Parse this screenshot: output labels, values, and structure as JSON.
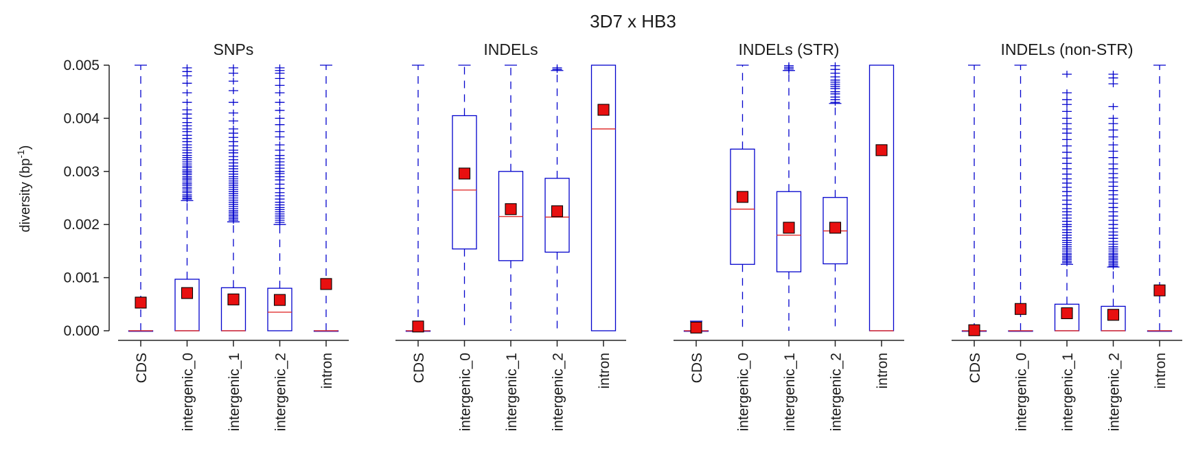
{
  "chart_data": {
    "type": "box",
    "title": "3D7 x HB3",
    "ylabel": "diversity (bp$^{-1}$)",
    "ylim": [
      0,
      0.005
    ],
    "yticks": [
      "0.000",
      "0.001",
      "0.002",
      "0.003",
      "0.004",
      "0.005"
    ],
    "categories": [
      "CDS",
      "intergenic_0",
      "intergenic_1",
      "intergenic_2",
      "intron"
    ],
    "colors": {
      "box": "#0000cc",
      "median": "#e03030",
      "mean_fill": "#e81010",
      "mean_edge": "#000000",
      "axis": "#222222"
    },
    "panels": [
      {
        "title": "SNPs",
        "boxes": [
          {
            "category": "CDS",
            "q1": 0,
            "median": 0,
            "q3": 0,
            "whisker_low": 0,
            "whisker_high": 0.005,
            "mean": 0.00053,
            "outliers": []
          },
          {
            "category": "intergenic_0",
            "q1": 0,
            "median": 0,
            "q3": 0.00097,
            "whisker_low": 0,
            "whisker_high": 0.00245,
            "mean": 0.00071,
            "outliers": [
              0.00248,
              0.0025,
              0.00253,
              0.00256,
              0.0026,
              0.00263,
              0.00267,
              0.0027,
              0.00274,
              0.00277,
              0.0028,
              0.00284,
              0.00287,
              0.0029,
              0.00294,
              0.00297,
              0.003,
              0.00303,
              0.00307,
              0.0031,
              0.00314,
              0.00318,
              0.00322,
              0.00326,
              0.0033,
              0.00335,
              0.0034,
              0.00345,
              0.0035,
              0.00356,
              0.00362,
              0.00368,
              0.00375,
              0.0038,
              0.00386,
              0.00392,
              0.004,
              0.00408,
              0.00416,
              0.0043,
              0.00448,
              0.00466,
              0.0048,
              0.00488,
              0.00495
            ]
          },
          {
            "category": "intergenic_1",
            "q1": 0,
            "median": 0,
            "q3": 0.00081,
            "whisker_low": 0,
            "whisker_high": 0.00205,
            "mean": 0.00059,
            "outliers": [
              0.00208,
              0.00211,
              0.00214,
              0.00217,
              0.0022,
              0.00223,
              0.00226,
              0.0023,
              0.00234,
              0.00238,
              0.00242,
              0.00246,
              0.0025,
              0.00254,
              0.00258,
              0.00262,
              0.00266,
              0.0027,
              0.00274,
              0.00278,
              0.00282,
              0.00286,
              0.0029,
              0.00295,
              0.003,
              0.00305,
              0.0031,
              0.00316,
              0.00322,
              0.00328,
              0.00335,
              0.0034,
              0.00348,
              0.00356,
              0.00364,
              0.00372,
              0.0038,
              0.00395,
              0.0041,
              0.0043,
              0.00452,
              0.0047,
              0.00485,
              0.00495
            ]
          },
          {
            "category": "intergenic_2",
            "q1": 0,
            "median": 0.00035,
            "q3": 0.0008,
            "whisker_low": 0,
            "whisker_high": 0.002,
            "mean": 0.00058,
            "outliers": [
              0.00204,
              0.00208,
              0.00212,
              0.00216,
              0.0022,
              0.00224,
              0.00228,
              0.00232,
              0.00237,
              0.00242,
              0.00248,
              0.00254,
              0.0026,
              0.00268,
              0.00276,
              0.00284,
              0.0029,
              0.00296,
              0.003,
              0.00306,
              0.00312,
              0.00318,
              0.00324,
              0.0033,
              0.0034,
              0.0035,
              0.00365,
              0.00375,
              0.00388,
              0.004,
              0.00415,
              0.0043,
              0.00448,
              0.00462,
              0.00475,
              0.00485,
              0.0049,
              0.00495
            ]
          },
          {
            "category": "intron",
            "q1": 0,
            "median": 0,
            "q3": 0,
            "whisker_low": 0,
            "whisker_high": 0.005,
            "mean": 0.00088,
            "outliers": []
          }
        ]
      },
      {
        "title": "INDELs",
        "boxes": [
          {
            "category": "CDS",
            "q1": 0,
            "median": 0,
            "q3": 0,
            "whisker_low": 0,
            "whisker_high": 0.005,
            "mean": 8e-05,
            "outliers": []
          },
          {
            "category": "intergenic_0",
            "q1": 0.00154,
            "median": 0.00265,
            "q3": 0.00405,
            "whisker_low": 0,
            "whisker_high": 0.005,
            "mean": 0.00296,
            "outliers": []
          },
          {
            "category": "intergenic_1",
            "q1": 0.00132,
            "median": 0.00215,
            "q3": 0.003,
            "whisker_low": 0,
            "whisker_high": 0.005,
            "mean": 0.00229,
            "outliers": []
          },
          {
            "category": "intergenic_2",
            "q1": 0.00148,
            "median": 0.00214,
            "q3": 0.00287,
            "whisker_low": 0,
            "whisker_high": 0.0049,
            "mean": 0.00225,
            "outliers": [
              0.00492,
              0.00495
            ]
          },
          {
            "category": "intron",
            "q1": 0,
            "median": 0.0038,
            "q3": 0.005,
            "whisker_low": 0,
            "whisker_high": 0.005,
            "mean": 0.00416,
            "outliers": []
          }
        ]
      },
      {
        "title": "INDELs (STR)",
        "boxes": [
          {
            "category": "CDS",
            "q1": 0,
            "median": 0,
            "q3": 0,
            "whisker_low": 0,
            "whisker_high": 0.00018,
            "mean": 6e-05,
            "outliers": []
          },
          {
            "category": "intergenic_0",
            "q1": 0.00125,
            "median": 0.00229,
            "q3": 0.00342,
            "whisker_low": 0,
            "whisker_high": 0.005,
            "mean": 0.00252,
            "outliers": []
          },
          {
            "category": "intergenic_1",
            "q1": 0.00111,
            "median": 0.0018,
            "q3": 0.00262,
            "whisker_low": 0,
            "whisker_high": 0.0049,
            "mean": 0.00194,
            "outliers": [
              0.0049,
              0.00493,
              0.00496,
              0.00499
            ]
          },
          {
            "category": "intergenic_2",
            "q1": 0.00126,
            "median": 0.00188,
            "q3": 0.00251,
            "whisker_low": 0,
            "whisker_high": 0.00428,
            "mean": 0.00194,
            "outliers": [
              0.0043,
              0.00435,
              0.0044,
              0.00446,
              0.0045,
              0.00456,
              0.0046,
              0.00464,
              0.00468,
              0.00472,
              0.00478,
              0.00485,
              0.00492,
              0.00499
            ]
          },
          {
            "category": "intron",
            "q1": 0,
            "median": 0,
            "q3": 0.005,
            "whisker_low": 0,
            "whisker_high": 0.005,
            "mean": 0.0034,
            "outliers": []
          }
        ]
      },
      {
        "title": "INDELs (non-STR)",
        "boxes": [
          {
            "category": "CDS",
            "q1": 0,
            "median": 0,
            "q3": 0,
            "whisker_low": 0,
            "whisker_high": 0.005,
            "mean": 1e-05,
            "outliers": []
          },
          {
            "category": "intergenic_0",
            "q1": 0,
            "median": 0,
            "q3": 0,
            "whisker_low": 0,
            "whisker_high": 0.005,
            "mean": 0.00041,
            "outliers": []
          },
          {
            "category": "intergenic_1",
            "q1": 0,
            "median": 0,
            "q3": 0.0005,
            "whisker_low": 0,
            "whisker_high": 0.00125,
            "mean": 0.00033,
            "outliers": [
              0.00128,
              0.00131,
              0.00134,
              0.00137,
              0.0014,
              0.00143,
              0.00146,
              0.0015,
              0.00154,
              0.00158,
              0.00162,
              0.00166,
              0.0017,
              0.00175,
              0.0018,
              0.00185,
              0.0019,
              0.00196,
              0.002,
              0.00206,
              0.00212,
              0.00218,
              0.00224,
              0.0023,
              0.00238,
              0.00246,
              0.00254,
              0.00262,
              0.0027,
              0.00278,
              0.00286,
              0.00295,
              0.00305,
              0.00315,
              0.00325,
              0.00336,
              0.00348,
              0.0036,
              0.00372,
              0.0038,
              0.0039,
              0.004,
              0.00413,
              0.00426,
              0.00435,
              0.00448,
              0.00483
            ]
          },
          {
            "category": "intergenic_2",
            "q1": 0,
            "median": 0,
            "q3": 0.00046,
            "whisker_low": 0,
            "whisker_high": 0.0012,
            "mean": 0.0003,
            "outliers": [
              0.00122,
              0.00125,
              0.00128,
              0.00131,
              0.00134,
              0.00137,
              0.0014,
              0.00143,
              0.00146,
              0.0015,
              0.00154,
              0.00158,
              0.00163,
              0.00168,
              0.00174,
              0.0018,
              0.00186,
              0.00193,
              0.002,
              0.00208,
              0.00216,
              0.00224,
              0.00232,
              0.0024,
              0.00248,
              0.00256,
              0.00264,
              0.00272,
              0.0028,
              0.00288,
              0.00296,
              0.00305,
              0.00314,
              0.00326,
              0.00338,
              0.0035,
              0.00365,
              0.00378,
              0.0039,
              0.004,
              0.00422,
              0.00465,
              0.00476,
              0.00483
            ]
          },
          {
            "category": "intron",
            "q1": 0,
            "median": 0,
            "q3": 0,
            "whisker_low": 0,
            "whisker_high": 0.005,
            "mean": 0.00076,
            "outliers": []
          }
        ]
      }
    ]
  }
}
